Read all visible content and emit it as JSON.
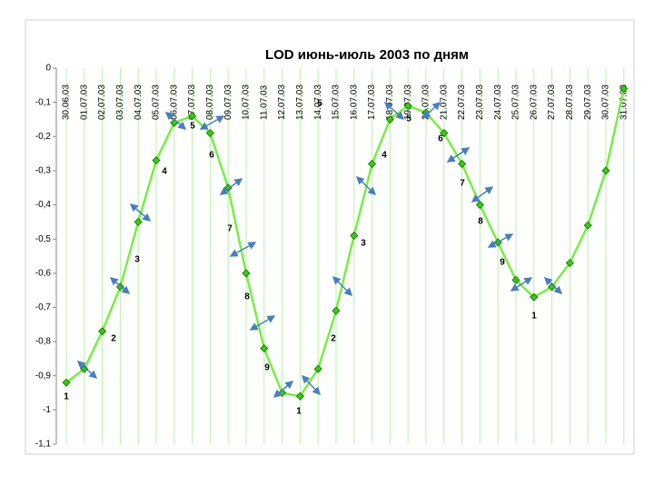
{
  "chart_data": {
    "type": "line",
    "title": "LOD июнь-июль  2003 по дням",
    "categories": [
      "30.06.03",
      "01.07.03",
      "02.07.03",
      "03.07.03",
      "04.07.03",
      "05.07.03",
      "06.07.03",
      "07.07.03",
      "08.07.03",
      "09.07.03",
      "10.07.03",
      "11.07.03",
      "12.07.03",
      "13.07.03",
      "14.07.03",
      "15.07.03",
      "16.07.03",
      "17.07.03",
      "18.07.03",
      "19.07.03",
      "20.07.03",
      "21.07.03",
      "22.07.03",
      "23.07.03",
      "24.07.03",
      "25.07.03",
      "26.07.03",
      "27.07.03",
      "28.07.03",
      "29.07.03",
      "30.07.03",
      "31.07.03"
    ],
    "series": [
      {
        "name": "LOD",
        "color": "#77ee44",
        "values": [
          -0.92,
          -0.88,
          -0.77,
          -0.64,
          -0.45,
          -0.27,
          -0.16,
          -0.14,
          -0.19,
          -0.35,
          -0.6,
          -0.82,
          -0.95,
          -0.96,
          -0.88,
          -0.71,
          -0.49,
          -0.28,
          -0.15,
          -0.11,
          -0.13,
          -0.19,
          -0.28,
          -0.4,
          -0.51,
          -0.62,
          -0.67,
          -0.64,
          -0.57,
          -0.46,
          -0.3,
          -0.06
        ]
      }
    ],
    "ylim": [
      -1.1,
      0
    ],
    "yticks": [
      {
        "value": 0,
        "label": "0"
      },
      {
        "value": -0.1,
        "label": "-0,1"
      },
      {
        "value": -0.2,
        "label": "-0,2"
      },
      {
        "value": -0.3,
        "label": "-0,3"
      },
      {
        "value": -0.4,
        "label": "-0,4"
      },
      {
        "value": -0.5,
        "label": "-0,5"
      },
      {
        "value": -0.6,
        "label": "-0,6"
      },
      {
        "value": -0.7,
        "label": "-0,7"
      },
      {
        "value": -0.8,
        "label": "-0,8"
      },
      {
        "value": -0.9,
        "label": "-0,9"
      },
      {
        "value": -1,
        "label": "-1"
      },
      {
        "value": -1.1,
        "label": "-1,1"
      }
    ],
    "grid": true,
    "annotations": [
      "1",
      "2",
      "3",
      "4",
      "5",
      "6",
      "7",
      "8",
      "9",
      "1",
      "5",
      "2",
      "3",
      "4",
      "5",
      "6",
      "7",
      "8",
      "9",
      "1"
    ]
  }
}
